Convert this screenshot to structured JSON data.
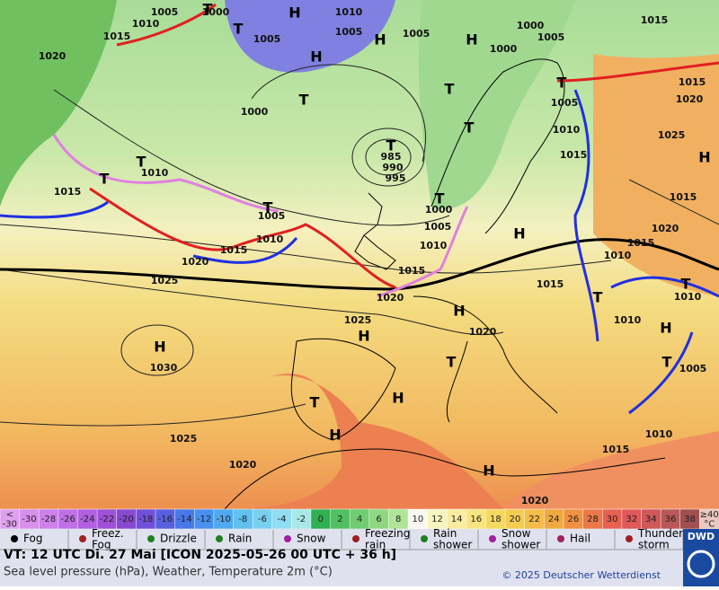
{
  "map": {
    "isobar_labels": [
      "1005",
      "1010",
      "1015",
      "1020",
      "1000",
      "1005",
      "1010",
      "1005",
      "1005",
      "1000",
      "1000",
      "1005",
      "1015",
      "1000",
      "985",
      "990",
      "995",
      "1010",
      "1015",
      "1005",
      "1010",
      "1015",
      "1020",
      "1025",
      "1030",
      "1025",
      "1020",
      "1015",
      "1010",
      "1005",
      "1000",
      "1005",
      "1010",
      "1015",
      "1015",
      "1020",
      "1025",
      "1015",
      "1020",
      "1015",
      "1010",
      "1015",
      "1010",
      "1010",
      "1005",
      "1010",
      "1015",
      "1020",
      "1025",
      "1020",
      "1020"
    ],
    "pressure_centers": [
      "H",
      "H",
      "H",
      "H",
      "H",
      "H",
      "H",
      "H",
      "H",
      "H",
      "H",
      "H",
      "H",
      "T",
      "T",
      "T",
      "T",
      "T",
      "T",
      "T",
      "T",
      "T",
      "T",
      "T",
      "T",
      "T",
      "T",
      "T",
      "T"
    ]
  },
  "scale": {
    "cells": [
      {
        "label": "<\n-30",
        "color": "#e0a0f0"
      },
      {
        "label": "-30",
        "color": "#d890ec"
      },
      {
        "label": "-28",
        "color": "#cc80e8"
      },
      {
        "label": "-26",
        "color": "#c070e4"
      },
      {
        "label": "-24",
        "color": "#b060e0"
      },
      {
        "label": "-22",
        "color": "#a050d8"
      },
      {
        "label": "-20",
        "color": "#8848d0"
      },
      {
        "label": "-18",
        "color": "#7050d8"
      },
      {
        "label": "-16",
        "color": "#5860e0"
      },
      {
        "label": "-14",
        "color": "#4878e8"
      },
      {
        "label": "-12",
        "color": "#4890f0"
      },
      {
        "label": "-10",
        "color": "#50a8f0"
      },
      {
        "label": "-8",
        "color": "#60c0f0"
      },
      {
        "label": "-6",
        "color": "#78d0f0"
      },
      {
        "label": "-4",
        "color": "#90dcf0"
      },
      {
        "label": "-2",
        "color": "#a8e8e8"
      },
      {
        "label": "0",
        "color": "#30b050"
      },
      {
        "label": "2",
        "color": "#50c060"
      },
      {
        "label": "4",
        "color": "#70cc70"
      },
      {
        "label": "6",
        "color": "#90d880"
      },
      {
        "label": "8",
        "color": "#b0e498"
      },
      {
        "label": "10",
        "color": "#f8f8f0"
      },
      {
        "label": "12",
        "color": "#f8f4c0"
      },
      {
        "label": "14",
        "color": "#f8eca0"
      },
      {
        "label": "16",
        "color": "#f8e480"
      },
      {
        "label": "18",
        "color": "#f4d860"
      },
      {
        "label": "20",
        "color": "#f4cc50"
      },
      {
        "label": "22",
        "color": "#f4bc48"
      },
      {
        "label": "24",
        "color": "#f0a840"
      },
      {
        "label": "26",
        "color": "#f09040"
      },
      {
        "label": "28",
        "color": "#ec7848"
      },
      {
        "label": "30",
        "color": "#e86050"
      },
      {
        "label": "32",
        "color": "#e05858"
      },
      {
        "label": "34",
        "color": "#d05858"
      },
      {
        "label": "36",
        "color": "#b85858"
      },
      {
        "label": "38",
        "color": "#a05050"
      },
      {
        "label": "≥40\n°C",
        "color": "#e8c8c0"
      }
    ]
  },
  "legend": [
    "Fog",
    "Freez.\nFog",
    "Drizzle",
    "Rain",
    "Snow",
    "Freezing\nrain",
    "Rain\nshower",
    "Snow\nshower",
    "Hail",
    "Thunder\nstorm"
  ],
  "footer": {
    "line1": "VT: 12 UTC Di.  27 Mai [ICON 2025-05-26  00 UTC + 36 h]",
    "line2": "Sea level pressure (hPa), Weather, Temperature 2m (°C)",
    "copyright": "© 2025 Deutscher Wetterdienst",
    "logo": "DWD"
  }
}
